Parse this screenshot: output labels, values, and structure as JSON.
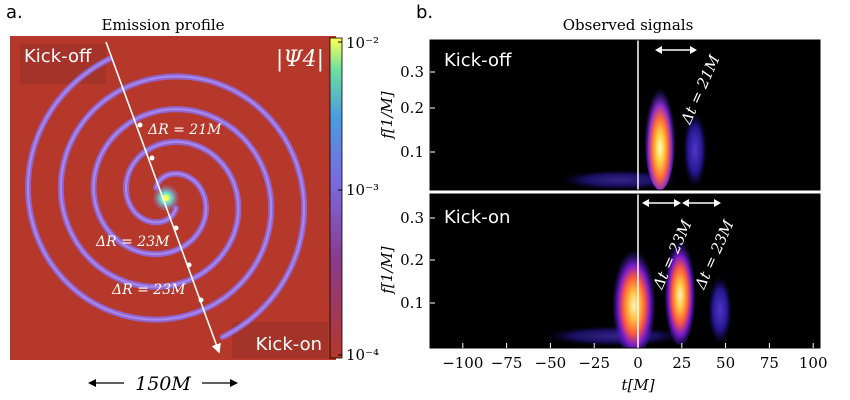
{
  "panel_a": {
    "letter": "a.",
    "title": "Emission profile",
    "corner_kick_off": "Kick-off",
    "corner_kick_on": "Kick-on",
    "psi_label": "|Ψ4|",
    "delta_r_top": "ΔR = 21M",
    "delta_r_mid": "ΔR = 23M",
    "delta_r_low": "ΔR = 23M",
    "scale_text": "150M",
    "colorbar_ticks": [
      "10⁻²",
      "10⁻³",
      "10⁻⁴"
    ],
    "colors": {
      "background": "#b5382a",
      "spiral": "#8e6ae0",
      "core": "#ffff55"
    }
  },
  "panel_b": {
    "letter": "b.",
    "title": "Observed signals",
    "top_label": "Kick-off",
    "bottom_label": "Kick-on",
    "ylabel": "f[1/M]",
    "xlabel": "t[M]",
    "yticks": [
      "0.3",
      "0.2",
      "0.1"
    ],
    "xticks": [
      "−100",
      "−75",
      "−50",
      "−25",
      "0",
      "25",
      "50",
      "75",
      "100"
    ],
    "dt_top": "Δt = 21M",
    "dt_bottom_1": "Δt = 23M",
    "dt_bottom_2": "Δt = 23M",
    "colors": {
      "background": "#000000",
      "signal_mid": "#3b2dcc",
      "signal_hot": "#ffdd55"
    }
  }
}
